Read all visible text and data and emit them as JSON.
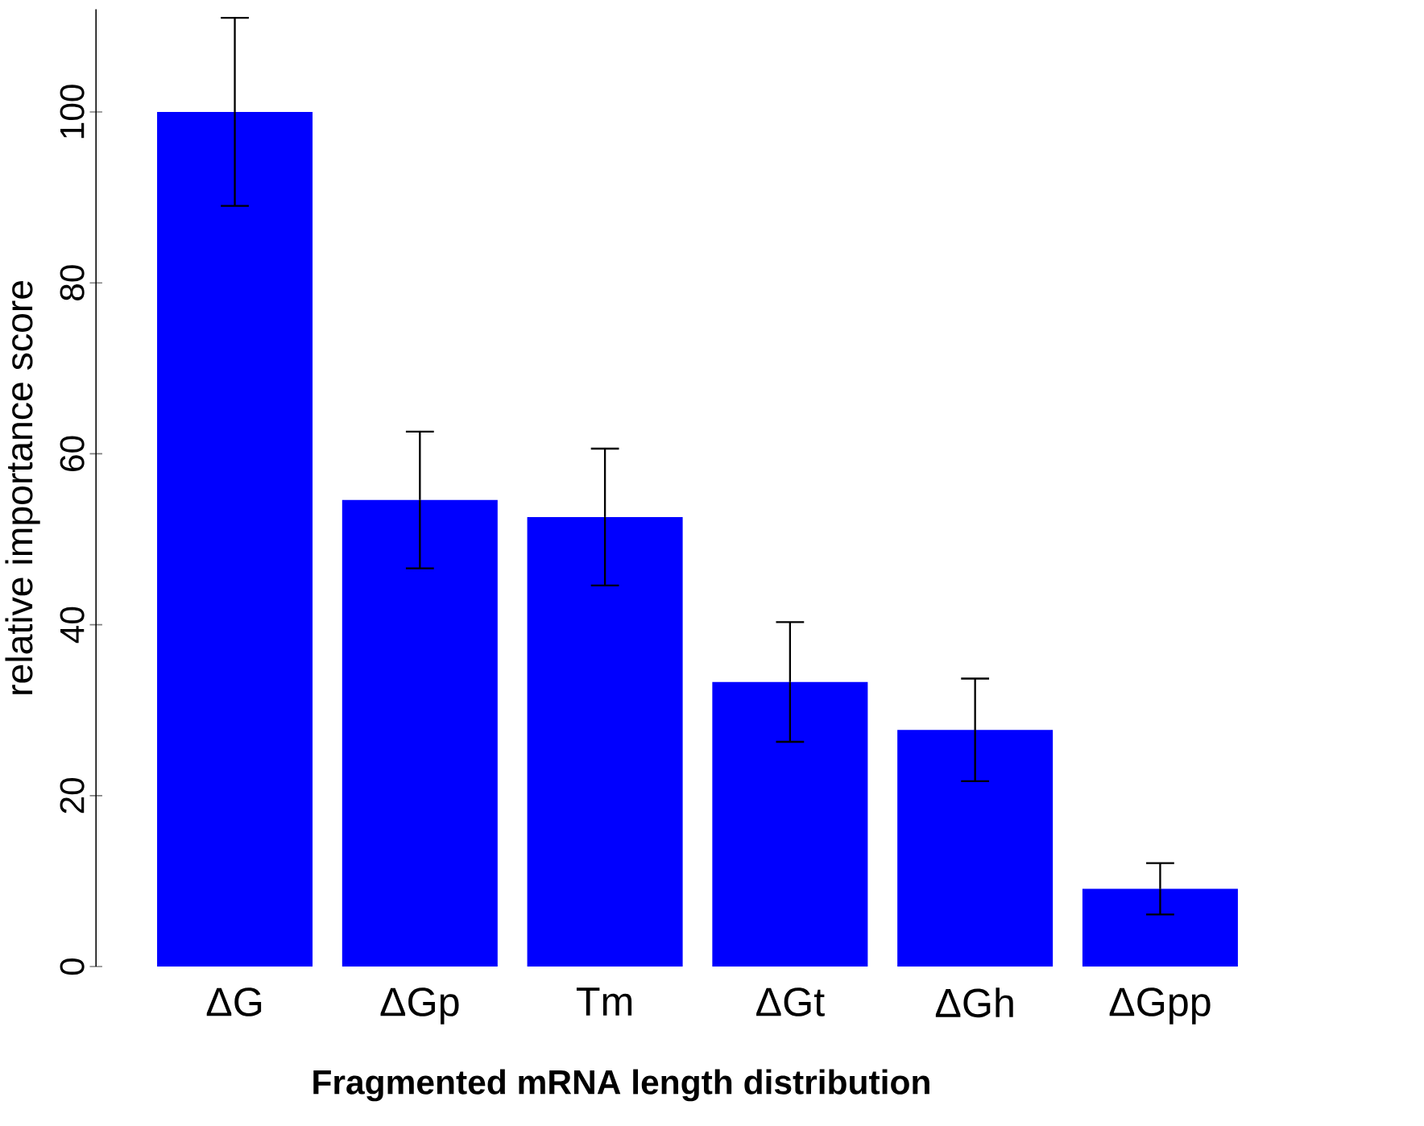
{
  "chart_data": {
    "type": "bar",
    "xlabel": "Fragmented mRNA length distribution",
    "ylabel": "relative importance score",
    "categories": [
      "ΔG",
      "ΔGp",
      "Tm",
      "ΔGt",
      "ΔGh",
      "ΔGpp"
    ],
    "values": [
      100,
      54.6,
      52.6,
      33.3,
      27.7,
      9.1
    ],
    "errors": [
      11,
      8,
      8,
      7,
      6,
      3
    ],
    "color": "#0000ff",
    "ylim": [
      0,
      112
    ],
    "yticks": [
      0,
      20,
      40,
      60,
      80,
      100
    ],
    "grid": false
  }
}
